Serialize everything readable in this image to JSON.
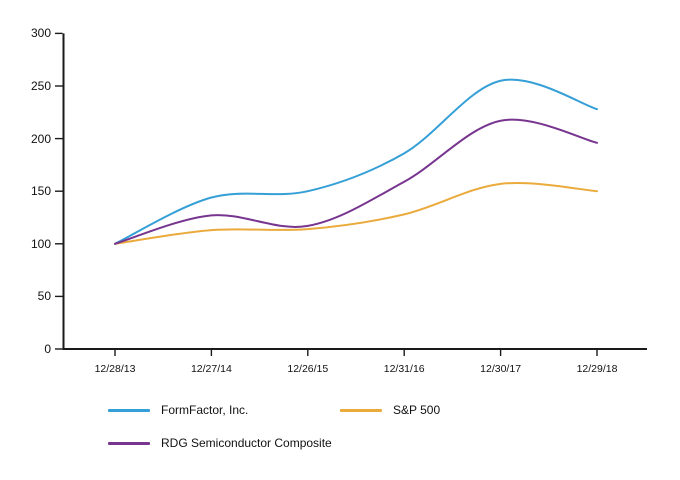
{
  "chart_data": {
    "type": "line",
    "title": "",
    "x_tick_labels": [
      "12/28/13",
      "12/27/14",
      "12/26/15",
      "12/31/16",
      "12/30/17",
      "12/29/18"
    ],
    "y_ticks": [
      0,
      50,
      100,
      150,
      200,
      250,
      300
    ],
    "ylim": [
      0,
      300
    ],
    "grid": false,
    "legend_position": "bottom",
    "axis_color": "#1a1a1a",
    "line_smoothing": "spline",
    "series": [
      {
        "name": "FormFactor, Inc.",
        "color": "#359FD7",
        "values": [
          100,
          144,
          150,
          186,
          255,
          228
        ]
      },
      {
        "name": "S&P 500",
        "color": "#EAAA3C",
        "values": [
          100,
          113,
          114,
          128,
          157,
          150
        ]
      },
      {
        "name": "RDG Semiconductor Composite",
        "color": "#77358F",
        "values": [
          100,
          127,
          117,
          159,
          217,
          196
        ]
      }
    ]
  }
}
